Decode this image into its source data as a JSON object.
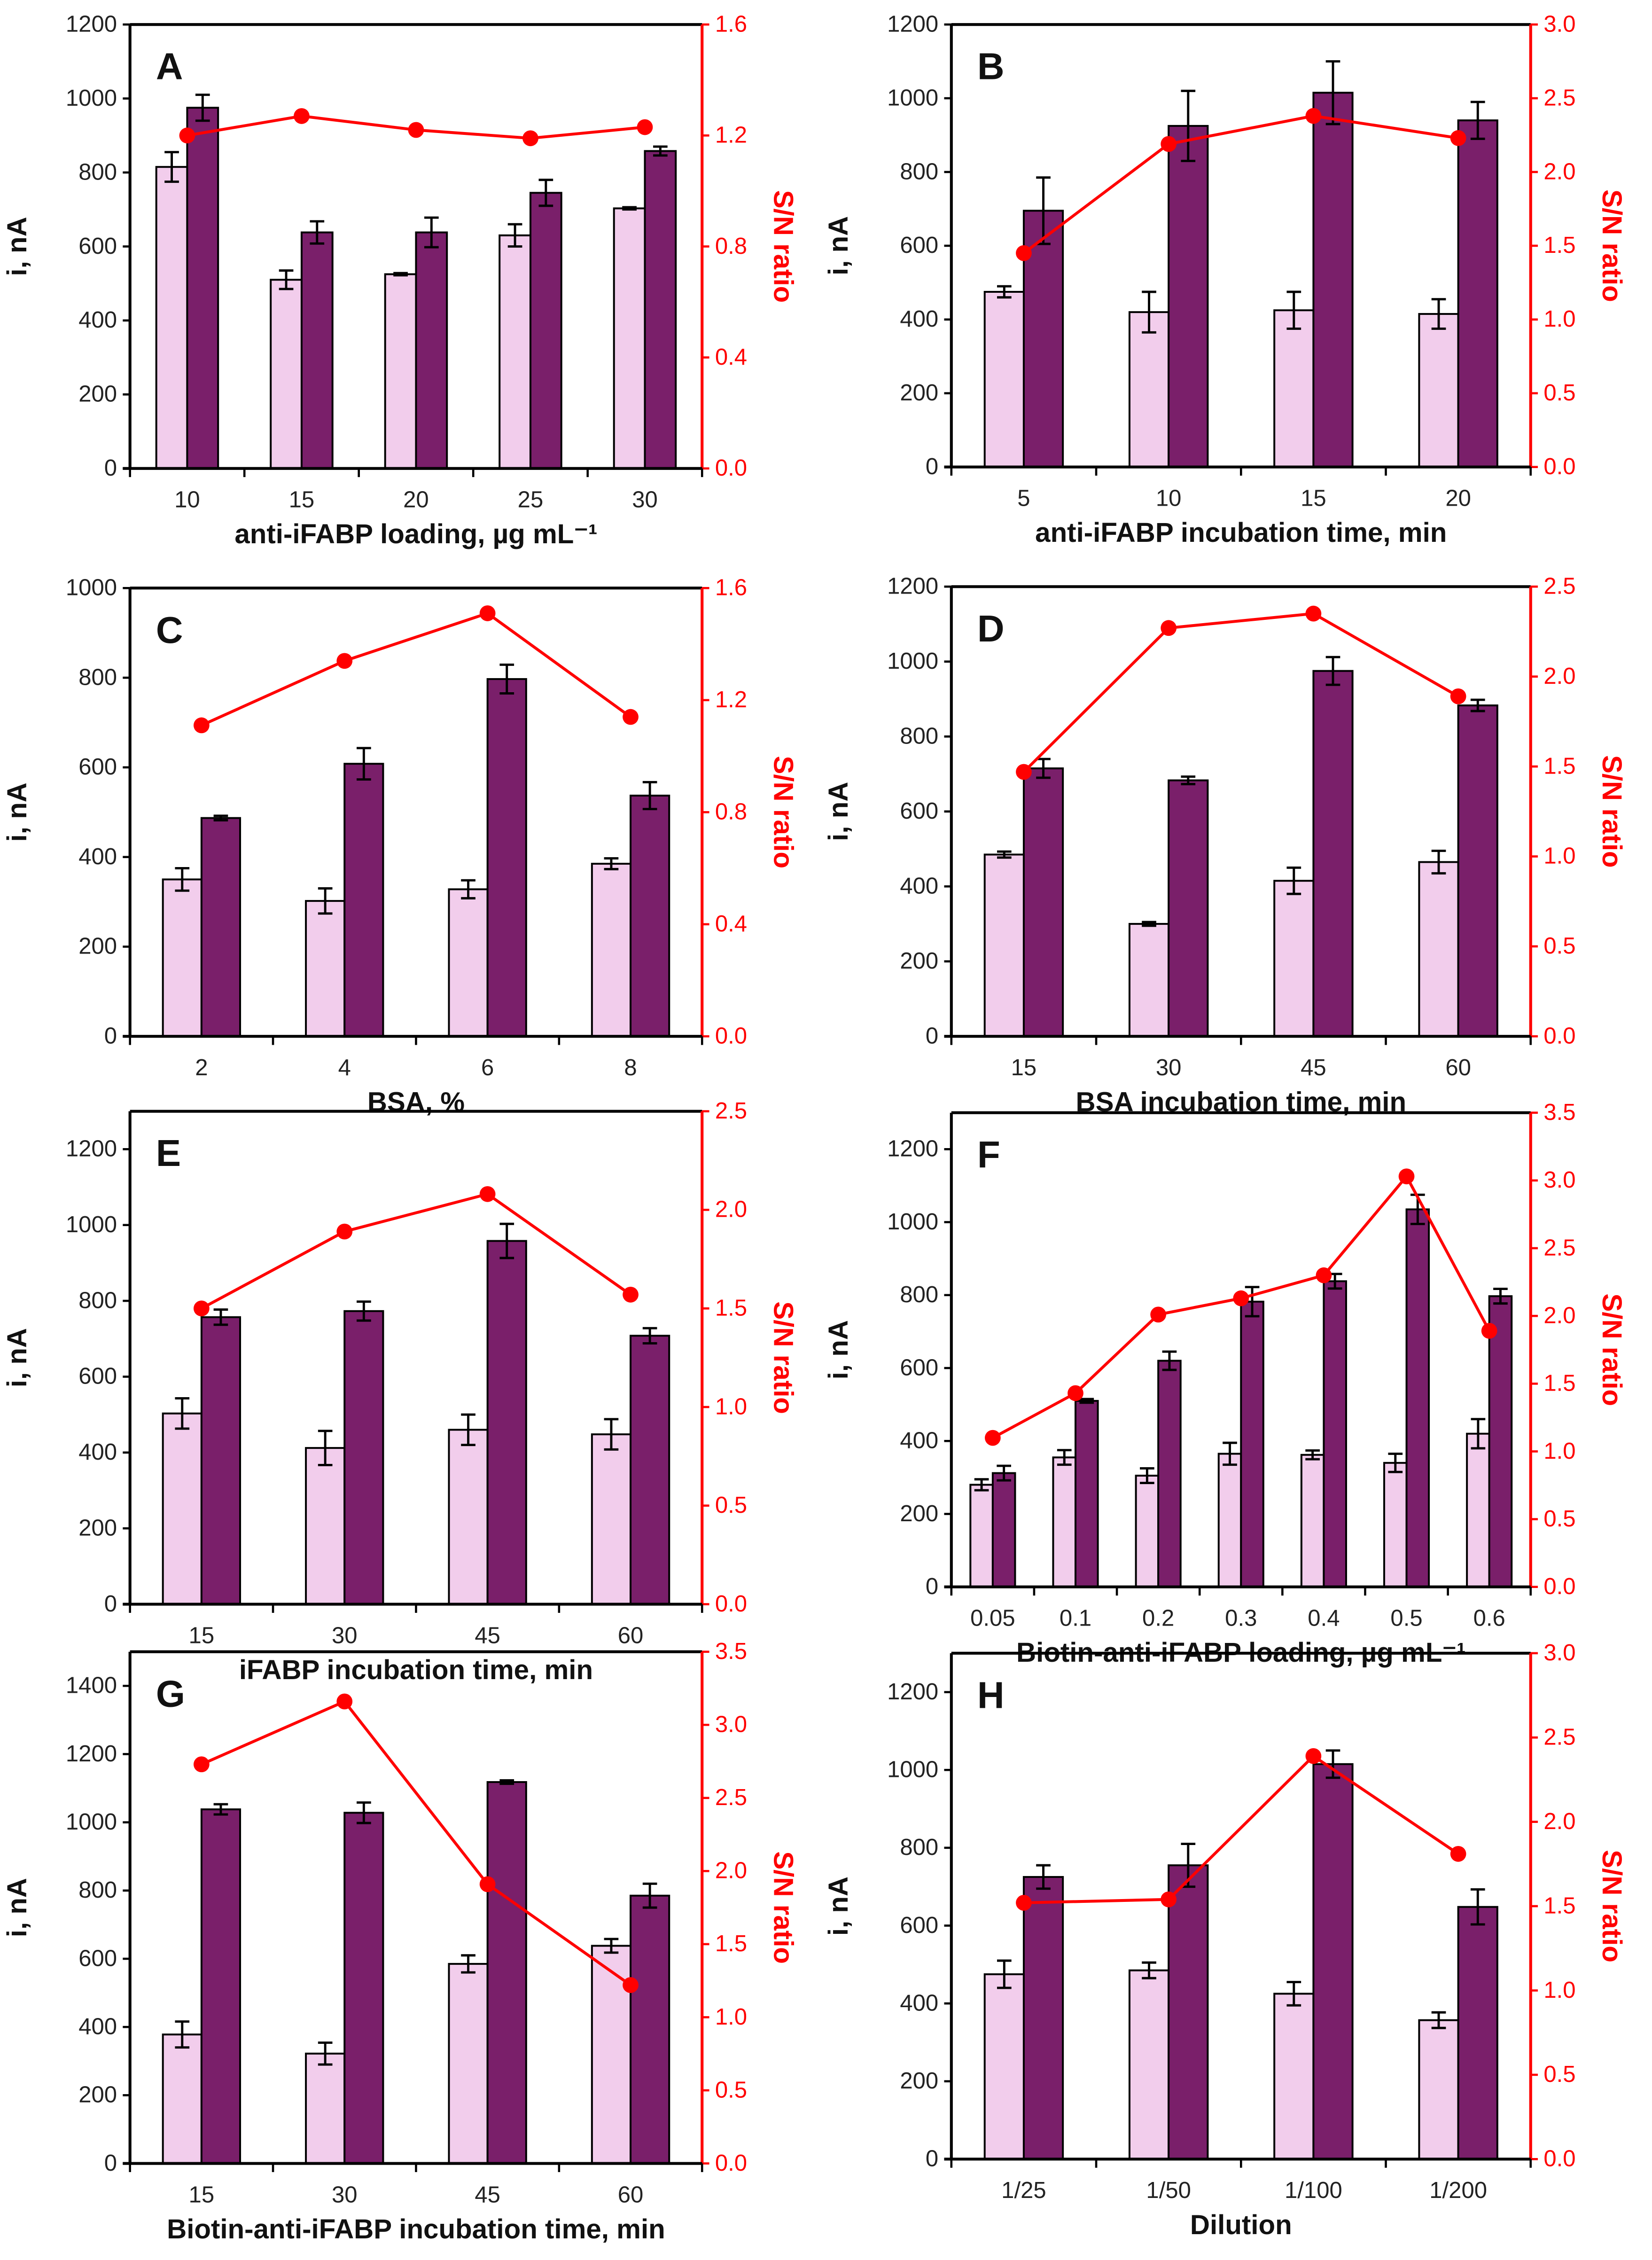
{
  "colors": {
    "bar_light": "#f2cdec",
    "bar_dark": "#7a1f6a",
    "sn_line": "#ff0000",
    "axis": "#000000"
  },
  "chart_data": [
    {
      "type": "bar+line",
      "panel": "A",
      "xlabel": "anti-iFABP loading, µg mL⁻¹",
      "ylabel": "i, nA",
      "y2label": "S/N ratio",
      "categories": [
        "10",
        "15",
        "20",
        "25",
        "30"
      ],
      "ylim": [
        0,
        1200
      ],
      "yticks": [
        0,
        200,
        400,
        600,
        800,
        1000,
        1200
      ],
      "y2lim": [
        0,
        1.6
      ],
      "y2ticks": [
        "0.0",
        "0.4",
        "0.8",
        "1.2",
        "1.6"
      ],
      "series": [
        {
          "values": [
            815,
            510,
            525,
            630,
            703
          ],
          "errors": [
            40,
            25,
            3,
            30,
            3
          ]
        },
        {
          "values": [
            975,
            638,
            638,
            745,
            858
          ],
          "errors": [
            35,
            30,
            40,
            35,
            12
          ]
        },
        {
          "axis": "right",
          "values": [
            1.2,
            1.27,
            1.22,
            1.19,
            1.23
          ]
        }
      ]
    },
    {
      "type": "bar+line",
      "panel": "B",
      "xlabel": "anti-iFABP incubation time, min",
      "ylabel": "i, nA",
      "y2label": "S/N ratio",
      "categories": [
        "5",
        "10",
        "15",
        "20"
      ],
      "ylim": [
        0,
        1200
      ],
      "yticks": [
        0,
        200,
        400,
        600,
        800,
        1000,
        1200
      ],
      "y2lim": [
        0,
        3.0
      ],
      "y2ticks": [
        "0.0",
        "0.5",
        "1.0",
        "1.5",
        "2.0",
        "2.5",
        "3.0"
      ],
      "series": [
        {
          "values": [
            475,
            420,
            425,
            415
          ],
          "errors": [
            15,
            55,
            50,
            40
          ]
        },
        {
          "values": [
            695,
            925,
            1015,
            940
          ],
          "errors": [
            90,
            95,
            85,
            50
          ]
        },
        {
          "axis": "right",
          "values": [
            1.45,
            2.19,
            2.38,
            2.23
          ]
        }
      ]
    },
    {
      "type": "bar+line",
      "panel": "C",
      "xlabel": "BSA, %",
      "ylabel": "i, nA",
      "y2label": "S/N ratio",
      "categories": [
        "2",
        "4",
        "6",
        "8"
      ],
      "ylim": [
        0,
        1000
      ],
      "yticks": [
        0,
        200,
        400,
        600,
        800,
        1000
      ],
      "y2lim": [
        0,
        1.6
      ],
      "y2ticks": [
        "0.0",
        "0.4",
        "0.8",
        "1.2",
        "1.6"
      ],
      "series": [
        {
          "values": [
            350,
            302,
            328,
            385
          ],
          "errors": [
            25,
            28,
            20,
            12
          ]
        },
        {
          "values": [
            487,
            608,
            797,
            537
          ],
          "errors": [
            5,
            35,
            32,
            30
          ]
        },
        {
          "axis": "right",
          "values": [
            1.11,
            1.34,
            1.51,
            1.14
          ]
        }
      ]
    },
    {
      "type": "bar+line",
      "panel": "D",
      "xlabel": "BSA incubation time, min",
      "ylabel": "i, nA",
      "y2label": "S/N ratio",
      "categories": [
        "15",
        "30",
        "45",
        "60"
      ],
      "ylim": [
        0,
        1200
      ],
      "yticks": [
        0,
        200,
        400,
        600,
        800,
        1000,
        1200
      ],
      "y2lim": [
        0,
        2.5
      ],
      "y2ticks": [
        "0.0",
        "0.5",
        "1.0",
        "1.5",
        "2.0",
        "2.5"
      ],
      "series": [
        {
          "values": [
            485,
            300,
            415,
            465
          ],
          "errors": [
            8,
            5,
            35,
            30
          ]
        },
        {
          "values": [
            715,
            683,
            975,
            883
          ],
          "errors": [
            25,
            10,
            37,
            15
          ]
        },
        {
          "axis": "right",
          "values": [
            1.47,
            2.27,
            2.35,
            1.89
          ]
        }
      ]
    },
    {
      "type": "bar+line",
      "panel": "E",
      "xlabel": "iFABP incubation time, min",
      "ylabel": "i, nA",
      "y2label": "S/N ratio",
      "categories": [
        "15",
        "30",
        "45",
        "60"
      ],
      "ylim": [
        0,
        1300
      ],
      "yticks": [
        0,
        200,
        400,
        600,
        800,
        1000,
        1200
      ],
      "y2lim": [
        0,
        2.5
      ],
      "y2ticks": [
        "0.0",
        "0.5",
        "1.0",
        "1.5",
        "2.0",
        "2.5"
      ],
      "series": [
        {
          "values": [
            503,
            412,
            460,
            448
          ],
          "errors": [
            40,
            45,
            40,
            40
          ]
        },
        {
          "values": [
            757,
            773,
            958,
            708
          ],
          "errors": [
            20,
            25,
            45,
            20
          ]
        },
        {
          "axis": "right",
          "values": [
            1.5,
            1.89,
            2.08,
            1.57
          ]
        }
      ]
    },
    {
      "type": "bar+line",
      "panel": "F",
      "xlabel": "Biotin-anti-iFABP loading, µg mL⁻¹",
      "ylabel": "i, nA",
      "y2label": "S/N ratio",
      "categories": [
        "0.05",
        "0.1",
        "0.2",
        "0.3",
        "0.4",
        "0.5",
        "0.6"
      ],
      "ylim": [
        0,
        1300
      ],
      "yticks": [
        0,
        200,
        400,
        600,
        800,
        1000,
        1200
      ],
      "y2lim": [
        0,
        3.5
      ],
      "y2ticks": [
        "0.0",
        "0.5",
        "1.0",
        "1.5",
        "2.0",
        "2.5",
        "3.0",
        "3.5"
      ],
      "series": [
        {
          "values": [
            280,
            355,
            305,
            365,
            362,
            340,
            420
          ],
          "errors": [
            15,
            20,
            20,
            30,
            12,
            25,
            40
          ]
        },
        {
          "values": [
            312,
            510,
            620,
            782,
            838,
            1035,
            797
          ],
          "errors": [
            20,
            5,
            25,
            40,
            20,
            40,
            20
          ]
        },
        {
          "axis": "right",
          "values": [
            1.1,
            1.43,
            2.01,
            2.13,
            2.3,
            3.03,
            1.89
          ]
        }
      ]
    },
    {
      "type": "bar+line",
      "panel": "G",
      "xlabel": "Biotin-anti-iFABP incubation time, min",
      "ylabel": "i, nA",
      "y2label": "S/N ratio",
      "categories": [
        "15",
        "30",
        "45",
        "60"
      ],
      "ylim": [
        0,
        1500
      ],
      "yticks": [
        0,
        200,
        400,
        600,
        800,
        1000,
        1200,
        1400
      ],
      "y2lim": [
        0,
        3.5
      ],
      "y2ticks": [
        "0.0",
        "0.5",
        "1.0",
        "1.5",
        "2.0",
        "2.5",
        "3.0",
        "3.5"
      ],
      "series": [
        {
          "values": [
            378,
            322,
            585,
            638
          ],
          "errors": [
            38,
            32,
            25,
            20
          ]
        },
        {
          "values": [
            1038,
            1028,
            1118,
            785
          ],
          "errors": [
            15,
            30,
            5,
            35
          ]
        },
        {
          "axis": "right",
          "values": [
            2.73,
            3.16,
            1.91,
            1.22
          ]
        }
      ]
    },
    {
      "type": "bar+line",
      "panel": "H",
      "xlabel": "Dilution",
      "ylabel": "i, nA",
      "y2label": "S/N ratio",
      "categories": [
        "1/25",
        "1/50",
        "1/100",
        "1/200"
      ],
      "ylim": [
        0,
        1300
      ],
      "yticks": [
        0,
        200,
        400,
        600,
        800,
        1000,
        1200
      ],
      "y2lim": [
        0,
        3.0
      ],
      "y2ticks": [
        "0.0",
        "0.5",
        "1.0",
        "1.5",
        "2.0",
        "2.5",
        "3.0"
      ],
      "series": [
        {
          "values": [
            475,
            485,
            425,
            357
          ],
          "errors": [
            35,
            20,
            30,
            20
          ]
        },
        {
          "values": [
            725,
            755,
            1015,
            648
          ],
          "errors": [
            30,
            55,
            35,
            45
          ]
        },
        {
          "axis": "right",
          "values": [
            1.52,
            1.54,
            2.39,
            1.81
          ]
        }
      ]
    }
  ]
}
